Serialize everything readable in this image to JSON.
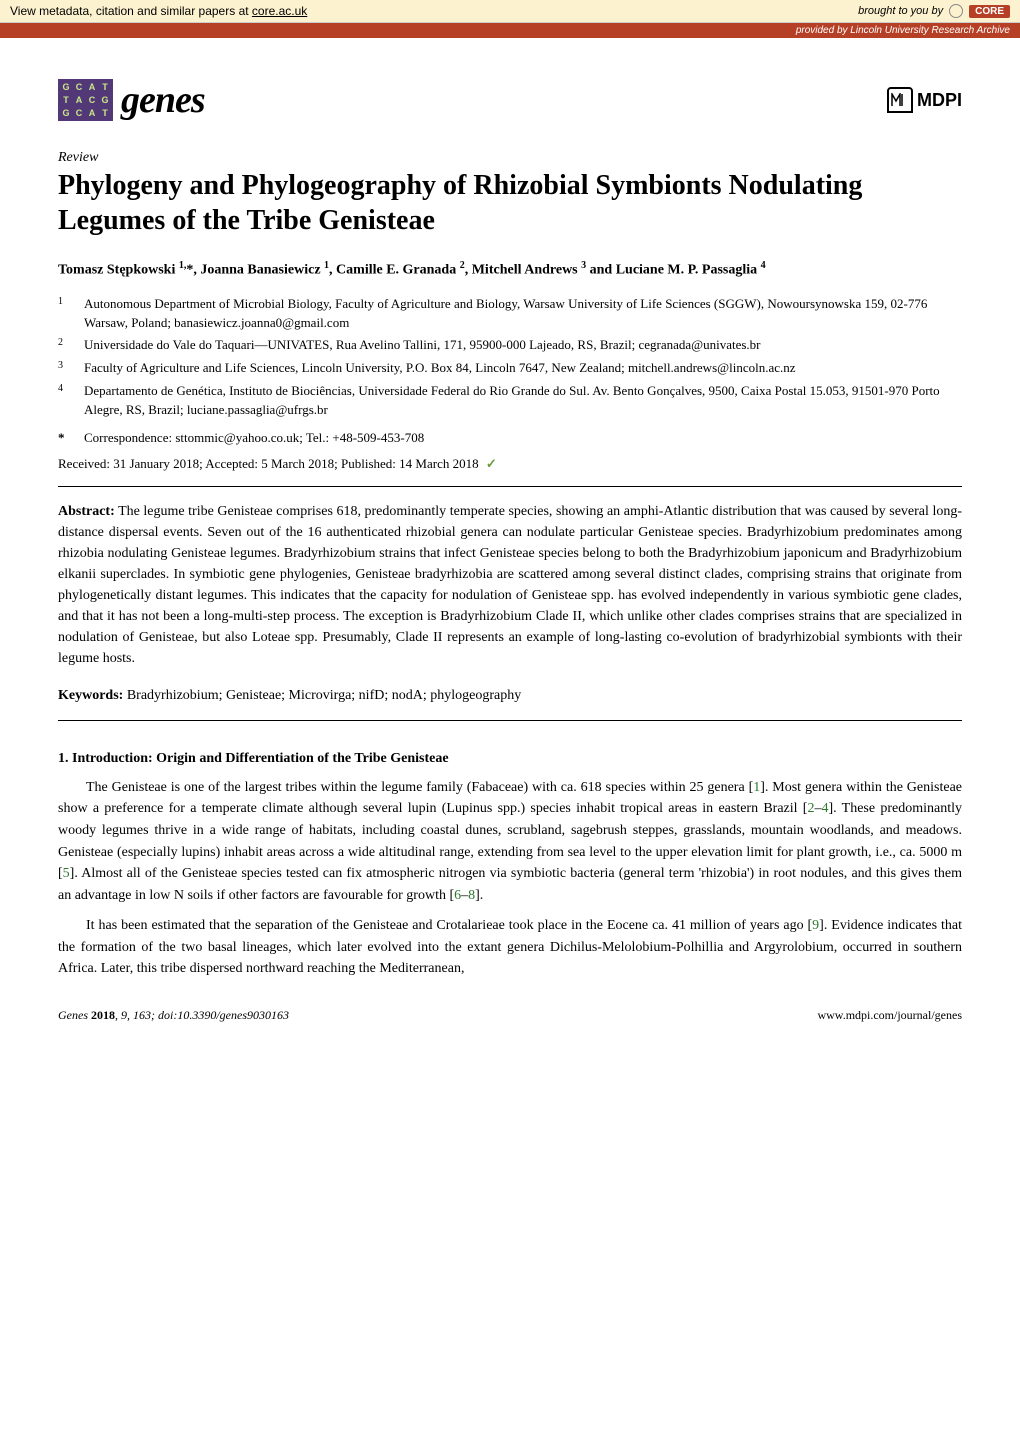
{
  "core_bar": {
    "left_text": "View metadata, citation and similar papers at ",
    "left_link": "core.ac.uk",
    "right_prefix": "brought to you by",
    "right_badge": "CORE",
    "provided_prefix": "provided by ",
    "provided_by": "Lincoln University Research Archive"
  },
  "genes_grid": [
    "G",
    "C",
    "A",
    "T",
    "T",
    "A",
    "C",
    "G",
    "G",
    "C",
    "A",
    "T"
  ],
  "journal_name": "genes",
  "publisher_name": "MDPI",
  "article_type": "Review",
  "title": "Phylogeny and Phylogeography of Rhizobial Symbionts Nodulating Legumes of the Tribe Genisteae",
  "authors_html": "Tomasz Stępkowski <sup>1,</sup>*, Joanna Banasiewicz <sup>1</sup>, Camille E. Granada <sup>2</sup>, Mitchell Andrews <sup>3</sup> and Luciane M. P. Passaglia <sup>4</sup>",
  "affiliations": [
    {
      "n": "1",
      "text": "Autonomous Department of Microbial Biology, Faculty of Agriculture and Biology, Warsaw University of Life Sciences (SGGW), Nowoursynowska 159, 02-776 Warsaw, Poland; banasiewicz.joanna0@gmail.com"
    },
    {
      "n": "2",
      "text": "Universidade do Vale do Taquari—UNIVATES, Rua Avelino Tallini, 171, 95900-000 Lajeado, RS, Brazil; cegranada@univates.br"
    },
    {
      "n": "3",
      "text": "Faculty of Agriculture and Life Sciences, Lincoln University, P.O. Box 84, Lincoln 7647, New Zealand; mitchell.andrews@lincoln.ac.nz"
    },
    {
      "n": "4",
      "text": "Departamento de Genética, Instituto de Biociências, Universidade Federal do Rio Grande do Sul. Av. Bento Gonçalves, 9500, Caixa Postal 15.053, 91501-970 Porto Alegre, RS, Brazil; luciane.passaglia@ufrgs.br"
    }
  ],
  "correspondence": "Correspondence: sttommic@yahoo.co.uk; Tel.: +48-509-453-708",
  "dates": "Received: 31 January 2018; Accepted: 5 March 2018; Published: 14 March 2018",
  "abstract_label": "Abstract:",
  "abstract": " The legume tribe Genisteae comprises 618, predominantly temperate species, showing an amphi-Atlantic distribution that was caused by several long-distance dispersal events. Seven out of the 16 authenticated rhizobial genera can nodulate particular Genisteae species. Bradyrhizobium predominates among rhizobia nodulating Genisteae legumes. Bradyrhizobium strains that infect Genisteae species belong to both the Bradyrhizobium japonicum and Bradyrhizobium elkanii superclades. In symbiotic gene phylogenies, Genisteae bradyrhizobia are scattered among several distinct clades, comprising strains that originate from phylogenetically distant legumes. This indicates that the capacity for nodulation of Genisteae spp. has evolved independently in various symbiotic gene clades, and that it has not been a long-multi-step process. The exception is Bradyrhizobium Clade II, which unlike other clades comprises strains that are specialized in nodulation of Genisteae, but also Loteae spp. Presumably, Clade II represents an example of long-lasting co-evolution of bradyrhizobial symbionts with their legume hosts.",
  "keywords_label": "Keywords:",
  "keywords": " Bradyrhizobium; Genisteae; Microvirga; nifD; nodA; phylogeography",
  "section_heading": "1. Introduction: Origin and Differentiation of the Tribe Genisteae",
  "p1_a": "The Genisteae is one of the largest tribes within the legume family (Fabaceae) with ca. 618 species within 25 genera [",
  "p1_c1": "1",
  "p1_b": "]. Most genera within the Genisteae show a preference for a temperate climate although several lupin (Lupinus spp.) species inhabit tropical areas in eastern Brazil [",
  "p1_c2": "2",
  "p1_dash": "–",
  "p1_c3": "4",
  "p1_c": "]. These predominantly woody legumes thrive in a wide range of habitats, including coastal dunes, scrubland, sagebrush steppes, grasslands, mountain woodlands, and meadows. Genisteae (especially lupins) inhabit areas across a wide altitudinal range, extending from sea level to the upper elevation limit for plant growth, i.e., ca. 5000 m [",
  "p1_c4": "5",
  "p1_d": "]. Almost all of the Genisteae species tested can fix atmospheric nitrogen via symbiotic bacteria (general term 'rhizobia') in root nodules, and this gives them an advantage in low N soils if other factors are favourable for growth [",
  "p1_c5": "6",
  "p1_c6": "8",
  "p1_e": "].",
  "p2_a": "It has been estimated that the separation of the Genisteae and Crotalarieae took place in the Eocene ca. 41 million of years ago [",
  "p2_c1": "9",
  "p2_b": "]. Evidence indicates that the formation of the two basal lineages, which later evolved into the extant genera Dichilus-Melolobium-Polhillia and Argyrolobium, occurred in southern Africa. Later, this tribe dispersed northward reaching the Mediterranean,",
  "footer_left_a": "Genes ",
  "footer_left_b": "2018",
  "footer_left_c": ", 9, 163; doi:10.3390/genes9030163",
  "footer_right": "www.mdpi.com/journal/genes"
}
